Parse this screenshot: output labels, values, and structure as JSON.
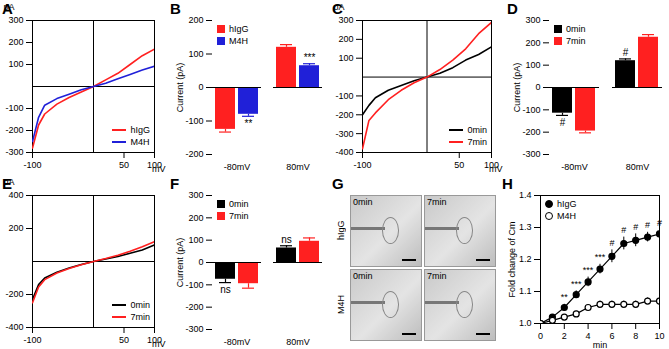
{
  "chart_data": [
    {
      "type": "line",
      "title": "A",
      "xlabel": "mV",
      "ylabel": "pA",
      "x": [
        -100,
        -90,
        -80,
        -60,
        -40,
        -20,
        0,
        20,
        40,
        60,
        80,
        100
      ],
      "xlim": [
        -100,
        100
      ],
      "xticks": [
        -100,
        50,
        100
      ],
      "ylim": [
        -300,
        300
      ],
      "yticks": [
        -300,
        -200,
        -100,
        100,
        200,
        300
      ],
      "legend": "bottom-right",
      "series": [
        {
          "name": "hIgG",
          "color": "#ff2020",
          "values": [
            -280,
            -175,
            -125,
            -80,
            -50,
            -25,
            0,
            30,
            60,
            100,
            140,
            170
          ]
        },
        {
          "name": "M4H",
          "color": "#2020d8",
          "values": [
            -250,
            -140,
            -85,
            -55,
            -35,
            -15,
            0,
            15,
            35,
            55,
            75,
            92
          ]
        }
      ]
    },
    {
      "type": "bar",
      "title": "B",
      "ylabel": "Current (pA)",
      "categories": [
        "-80mV",
        "80mV"
      ],
      "ylim": [
        -200,
        200
      ],
      "yticks": [
        -200,
        -100,
        0,
        100,
        200
      ],
      "legend": "top-left",
      "series": [
        {
          "name": "hIgG",
          "color": "#ff2020",
          "values": [
            -125,
            120
          ],
          "errors": [
            8,
            8
          ]
        },
        {
          "name": "M4H",
          "color": "#2020d8",
          "values": [
            -80,
            65
          ],
          "errors": [
            6,
            6
          ]
        }
      ],
      "annotations": [
        {
          "category": "-80mV",
          "series": "M4H",
          "text": "**"
        },
        {
          "category": "80mV",
          "series": "M4H",
          "text": "***"
        }
      ]
    },
    {
      "type": "line",
      "title": "C",
      "xlabel": "mV",
      "ylabel": "pA",
      "x": [
        -100,
        -90,
        -80,
        -60,
        -40,
        -20,
        0,
        20,
        40,
        60,
        80,
        100
      ],
      "xlim": [
        -100,
        100
      ],
      "xticks": [
        -100,
        50,
        100
      ],
      "ylim": [
        -400,
        300
      ],
      "yticks": [
        -400,
        -300,
        -200,
        -100,
        100,
        200,
        300
      ],
      "legend": "bottom-right",
      "series": [
        {
          "name": "0min",
          "color": "#000000",
          "values": [
            -200,
            -150,
            -110,
            -70,
            -45,
            -20,
            0,
            20,
            50,
            90,
            120,
            160
          ]
        },
        {
          "name": "7min",
          "color": "#ff2020",
          "values": [
            -380,
            -230,
            -190,
            -120,
            -70,
            -30,
            0,
            40,
            90,
            150,
            230,
            290
          ]
        }
      ]
    },
    {
      "type": "bar",
      "title": "D",
      "ylabel": "Current (pA)",
      "categories": [
        "-80mV",
        "80mV"
      ],
      "ylim": [
        -300,
        300
      ],
      "yticks": [
        -300,
        -200,
        -100,
        0,
        100,
        200,
        300
      ],
      "legend": "top-left",
      "series": [
        {
          "name": "0min",
          "color": "#000000",
          "values": [
            -115,
            120
          ],
          "errors": [
            10,
            8
          ]
        },
        {
          "name": "7min",
          "color": "#ff2020",
          "values": [
            -195,
            225
          ],
          "errors": [
            8,
            12
          ]
        }
      ],
      "annotations": [
        {
          "category": "-80mV",
          "series": "0min",
          "text": "#"
        },
        {
          "category": "80mV",
          "series": "0min",
          "text": "#"
        }
      ]
    },
    {
      "type": "line",
      "title": "E",
      "xlabel": "mV",
      "ylabel": "pA",
      "x": [
        -100,
        -90,
        -80,
        -60,
        -40,
        -20,
        0,
        20,
        40,
        60,
        80,
        100
      ],
      "xlim": [
        -100,
        100
      ],
      "xticks": [
        -100,
        50,
        100
      ],
      "ylim": [
        -400,
        400
      ],
      "yticks": [
        -400,
        -200,
        200,
        400
      ],
      "legend": "bottom-right",
      "series": [
        {
          "name": "0min",
          "color": "#000000",
          "values": [
            -230,
            -140,
            -100,
            -65,
            -40,
            -18,
            0,
            15,
            30,
            50,
            70,
            100
          ]
        },
        {
          "name": "7min",
          "color": "#ff2020",
          "values": [
            -250,
            -155,
            -110,
            -70,
            -42,
            -20,
            0,
            18,
            38,
            62,
            90,
            120
          ]
        }
      ]
    },
    {
      "type": "bar",
      "title": "F",
      "ylabel": "Current (pA)",
      "categories": [
        "-80mV",
        "80mV"
      ],
      "ylim": [
        -300,
        300
      ],
      "yticks": [
        -300,
        -200,
        -100,
        0,
        100,
        200,
        300
      ],
      "legend": "top-left",
      "series": [
        {
          "name": "0min",
          "color": "#000000",
          "values": [
            -75,
            65
          ],
          "errors": [
            15,
            10
          ]
        },
        {
          "name": "7min",
          "color": "#ff2020",
          "values": [
            -95,
            95
          ],
          "errors": [
            20,
            15
          ]
        }
      ],
      "annotations": [
        {
          "category": "-80mV",
          "series": "0min",
          "text": "ns"
        },
        {
          "category": "80mV",
          "series": "0min",
          "text": "ns"
        }
      ]
    },
    {
      "type": "scatter",
      "title": "H",
      "xlabel": "min",
      "ylabel": "Fold change of Cm",
      "x": [
        0,
        1,
        2,
        3,
        4,
        5,
        6,
        7,
        8,
        9,
        10
      ],
      "xlim": [
        0,
        10
      ],
      "xticks": [
        0,
        2,
        4,
        6,
        8,
        10
      ],
      "ylim": [
        1.0,
        1.4
      ],
      "yticks": [
        {
          "value": 1.0,
          "label": "1.0"
        },
        1.1,
        1.2,
        1.3,
        1.4
      ],
      "legend": "top-left",
      "series": [
        {
          "name": "hIgG",
          "color": "#000000",
          "marker": "circle",
          "values": [
            1.0,
            1.02,
            1.05,
            1.09,
            1.13,
            1.17,
            1.21,
            1.25,
            1.26,
            1.27,
            1.28
          ],
          "errors": [
            0,
            0.005,
            0.01,
            0.012,
            0.015,
            0.015,
            0.02,
            0.02,
            0.02,
            0.015,
            0.012
          ]
        },
        {
          "name": "M4H",
          "color": "#000000",
          "marker": "open_circle",
          "values": [
            1.0,
            1.01,
            1.02,
            1.03,
            1.05,
            1.06,
            1.06,
            1.06,
            1.06,
            1.07,
            1.07
          ],
          "errors": [
            0,
            0.005,
            0.005,
            0.008,
            0.008,
            0.01,
            0.01,
            0.01,
            0.01,
            0.01,
            0.01
          ]
        }
      ],
      "annotations": [
        {
          "x": 2,
          "series": "hIgG",
          "text": "**"
        },
        {
          "x": 3,
          "series": "hIgG",
          "text": "***"
        },
        {
          "x": 4,
          "series": "hIgG",
          "text": "***"
        },
        {
          "x": 5,
          "series": "hIgG",
          "text": "***"
        },
        {
          "x": 6,
          "series": "hIgG",
          "text": "#"
        },
        {
          "x": 7,
          "series": "hIgG",
          "text": "#"
        },
        {
          "x": 8,
          "series": "hIgG",
          "text": "#"
        },
        {
          "x": 9,
          "series": "hIgG",
          "text": "#"
        },
        {
          "x": 10,
          "series": "hIgG",
          "text": "#"
        }
      ]
    }
  ],
  "image_panel": {
    "title": "G",
    "columns": [
      "0min",
      "7min"
    ],
    "rows": [
      "hIgG",
      "M4H"
    ]
  }
}
